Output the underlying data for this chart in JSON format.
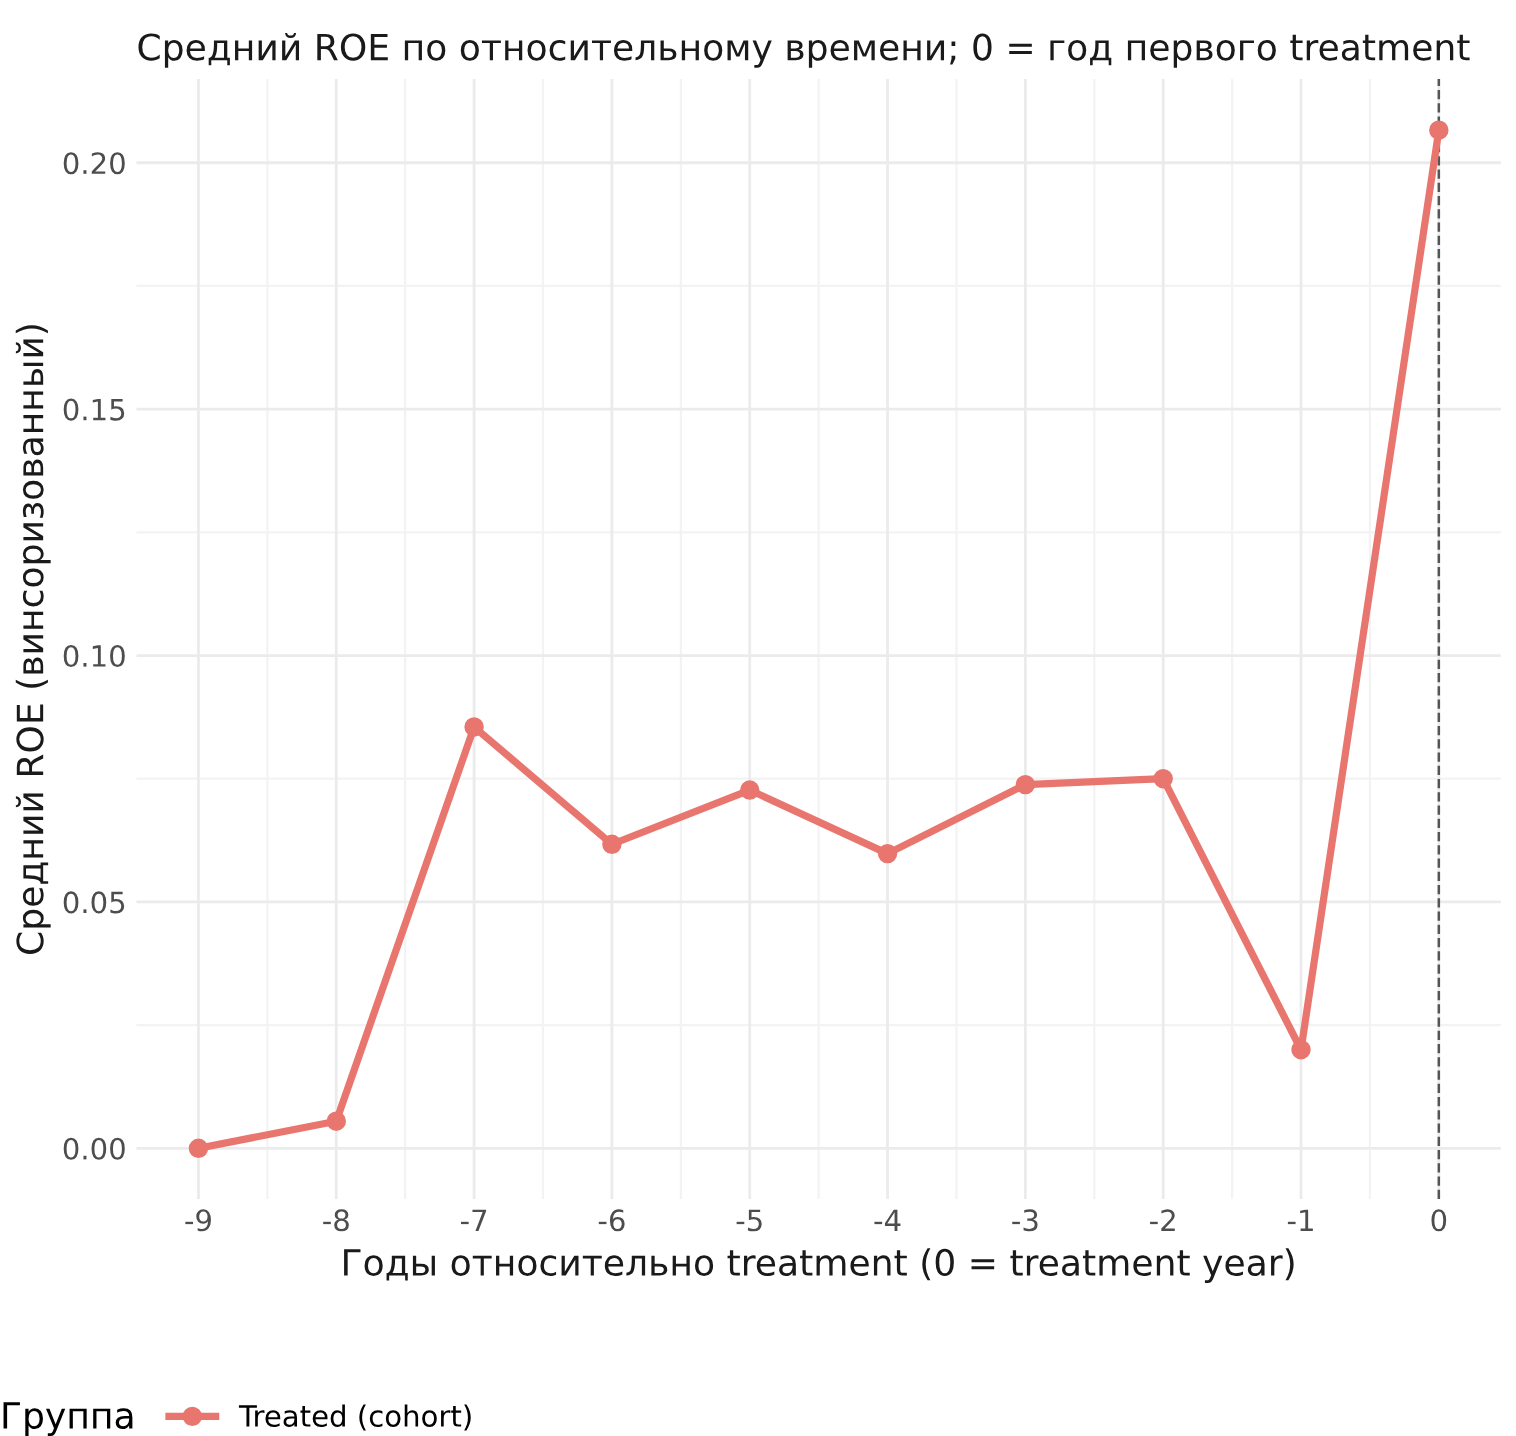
{
  "chart_data": {
    "type": "line",
    "title": "Средний ROE по относительному времени; 0 = год первого treatment",
    "xlabel": "Годы относительно treatment (0 = treatment year)",
    "ylabel": "Средний ROE (винсоризованный)",
    "legend_title": "Группа",
    "x": [
      -9,
      -8,
      -7,
      -6,
      -5,
      -4,
      -3,
      -2,
      -1,
      0
    ],
    "series": [
      {
        "name": "Treated (cohort)",
        "color": "#e8766f",
        "values": [
          0.0,
          0.0055,
          0.0855,
          0.0617,
          0.0727,
          0.0598,
          0.0738,
          0.075,
          0.02,
          0.2066
        ]
      }
    ],
    "xlim": [
      -9.45,
      0.45
    ],
    "xticks": [
      -9,
      -8,
      -7,
      -6,
      -5,
      -4,
      -3,
      -2,
      -1,
      0
    ],
    "ylim": [
      -0.0103,
      0.217
    ],
    "yticks": [
      {
        "value": 0,
        "label": "0.00"
      },
      {
        "value": 0.05,
        "label": "0.05"
      },
      {
        "value": 0.1,
        "label": "0.10"
      },
      {
        "value": 0.15,
        "label": "0.15"
      },
      {
        "value": 0.2,
        "label": "0.20"
      }
    ],
    "ref_lines": [
      {
        "axis": "x",
        "value": 0,
        "label": null,
        "color": "#555555",
        "line_style": "dashed"
      }
    ],
    "grid": true,
    "legend": "bottom",
    "marker": "circle",
    "line_style": "solid"
  }
}
